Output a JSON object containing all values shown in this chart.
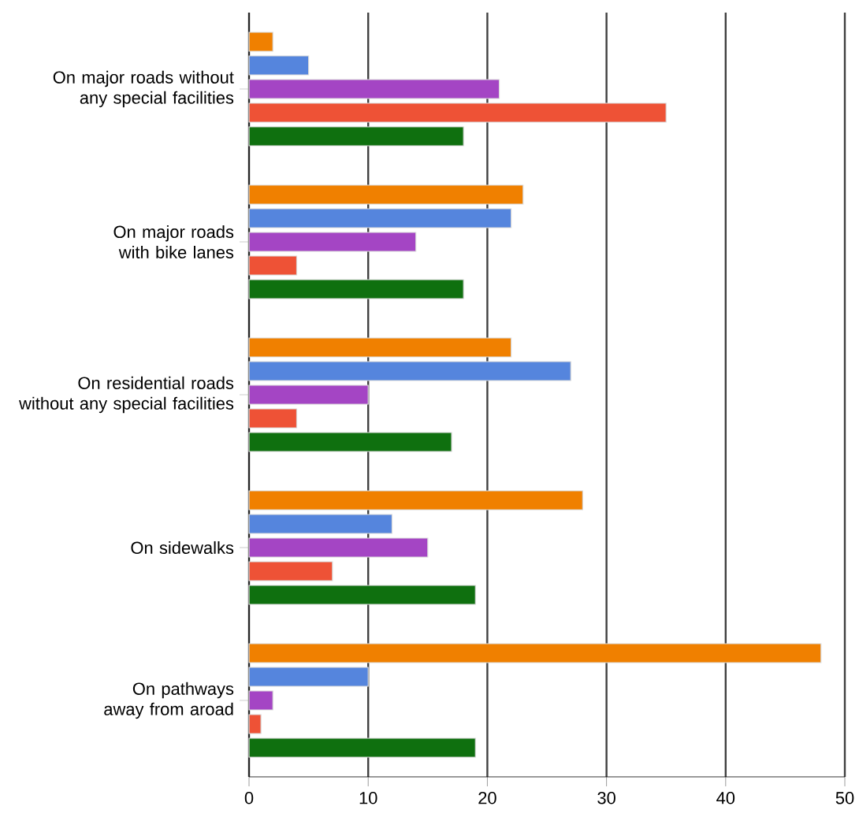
{
  "chart_data": {
    "type": "bar",
    "orientation": "horizontal",
    "categories": [
      "On major roads without any special facilities",
      "On major roads with bike lanes",
      "On residential roads without any special facilities",
      "On sidewalks",
      "On pathways away from aroad"
    ],
    "series": [
      {
        "color": "#f08000",
        "values": [
          2,
          23,
          22,
          28,
          48
        ]
      },
      {
        "color": "#5585dd",
        "values": [
          5,
          22,
          27,
          12,
          10
        ]
      },
      {
        "color": "#a445c4",
        "values": [
          21,
          14,
          10,
          15,
          2
        ]
      },
      {
        "color": "#ee5236",
        "values": [
          35,
          4,
          4,
          7,
          1
        ]
      },
      {
        "color": "#0f700f",
        "values": [
          18,
          18,
          17,
          19,
          19
        ]
      }
    ],
    "xlim": [
      0,
      50
    ],
    "xticks": [
      0,
      10,
      20,
      30,
      40,
      50
    ],
    "grid": "x"
  }
}
